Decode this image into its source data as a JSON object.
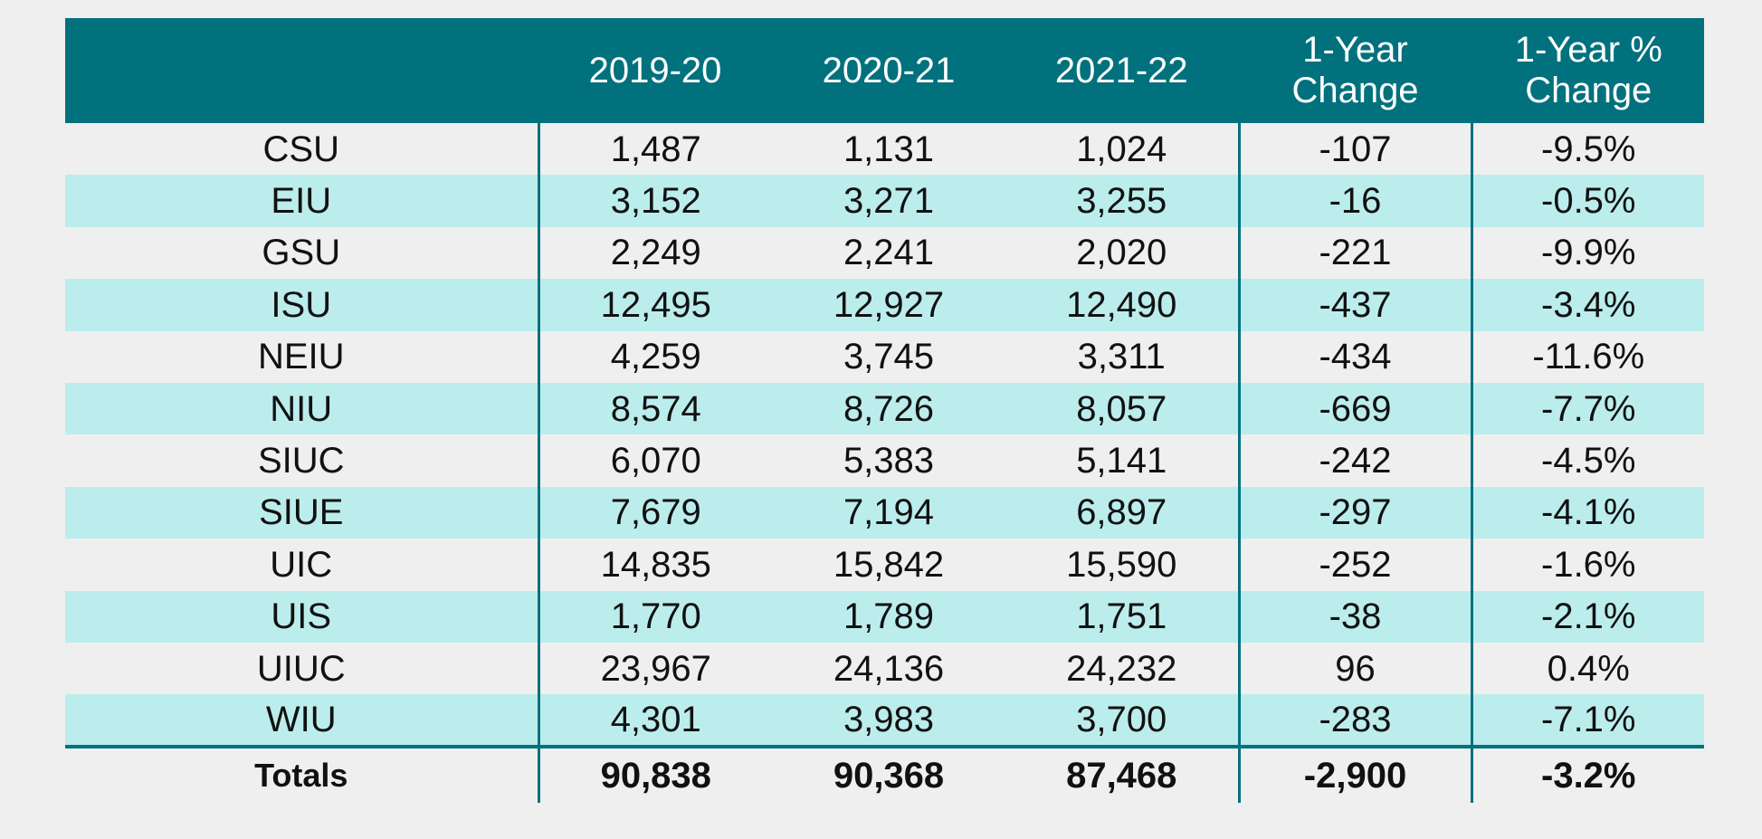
{
  "chart_data": {
    "type": "table",
    "columns": [
      "",
      "2019-20",
      "2020-21",
      "2021-22",
      "1-Year Change",
      "1-Year % Change"
    ],
    "header_lines": [
      [
        ""
      ],
      [
        "2019-20"
      ],
      [
        "2020-21"
      ],
      [
        "2021-22"
      ],
      [
        "1-Year",
        "Change"
      ],
      [
        "1-Year %",
        "Change"
      ]
    ],
    "rows": [
      [
        "CSU",
        "1,487",
        "1,131",
        "1,024",
        "-107",
        "-9.5%"
      ],
      [
        "EIU",
        "3,152",
        "3,271",
        "3,255",
        "-16",
        "-0.5%"
      ],
      [
        "GSU",
        "2,249",
        "2,241",
        "2,020",
        "-221",
        "-9.9%"
      ],
      [
        "ISU",
        "12,495",
        "12,927",
        "12,490",
        "-437",
        "-3.4%"
      ],
      [
        "NEIU",
        "4,259",
        "3,745",
        "3,311",
        "-434",
        "-11.6%"
      ],
      [
        "NIU",
        "8,574",
        "8,726",
        "8,057",
        "-669",
        "-7.7%"
      ],
      [
        "SIUC",
        "6,070",
        "5,383",
        "5,141",
        "-242",
        "-4.5%"
      ],
      [
        "SIUE",
        "7,679",
        "7,194",
        "6,897",
        "-297",
        "-4.1%"
      ],
      [
        "UIC",
        "14,835",
        "15,842",
        "15,590",
        "-252",
        "-1.6%"
      ],
      [
        "UIS",
        "1,770",
        "1,789",
        "1,751",
        "-38",
        "-2.1%"
      ],
      [
        "UIUC",
        "23,967",
        "24,136",
        "24,232",
        "96",
        "0.4%"
      ],
      [
        "WIU",
        "4,301",
        "3,983",
        "3,700",
        "-283",
        "-7.1%"
      ]
    ],
    "totals": [
      "Totals",
      "90,838",
      "90,368",
      "87,468",
      "-2,900",
      "-3.2%"
    ],
    "colors": {
      "header_bg": "#01717d",
      "row_alt_bg": "#bceded",
      "row_bg": "#efefef",
      "divider": "#01717d"
    }
  }
}
